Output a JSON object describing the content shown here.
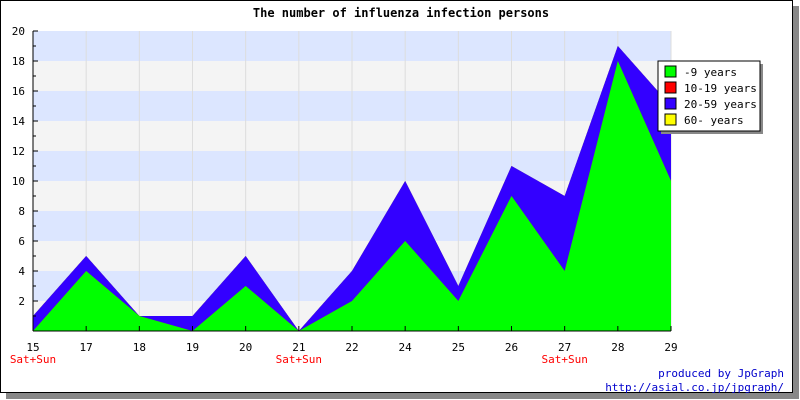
{
  "chart_data": {
    "type": "area",
    "stacked": true,
    "title": "The number of influenza infection persons",
    "categories": [
      "15",
      "17",
      "18",
      "19",
      "20",
      "21",
      "22",
      "24",
      "25",
      "26",
      "27",
      "28",
      "29"
    ],
    "weekend_label": "Sat+Sun",
    "weekend_categories": [
      "15",
      "21",
      "27"
    ],
    "ylim": [
      0,
      20
    ],
    "yticks": [
      2,
      4,
      6,
      8,
      10,
      12,
      14,
      16,
      18,
      20
    ],
    "grid": true,
    "legend_position": "right",
    "series": [
      {
        "name": "-9 years",
        "color": "#00ff00",
        "values": [
          0,
          4,
          1,
          0,
          3,
          0,
          2,
          6,
          2,
          9,
          4,
          18,
          10
        ]
      },
      {
        "name": "10-19 years",
        "color": "#ff0000",
        "values": [
          0,
          0,
          0,
          0,
          0,
          0,
          0,
          0,
          0,
          0,
          0,
          0,
          0
        ]
      },
      {
        "name": "20-59 years",
        "color": "#3300ff",
        "values": [
          1,
          1,
          0,
          1,
          2,
          0,
          2,
          4,
          1,
          2,
          5,
          1,
          5
        ]
      },
      {
        "name": "60- years",
        "color": "#ffff00",
        "values": [
          0,
          0,
          0,
          0,
          0,
          0,
          0,
          0,
          0,
          0,
          0,
          0,
          0
        ]
      }
    ]
  },
  "credits": {
    "line1": "produced by JpGraph",
    "line2": "http://asial.co.jp/jpgraph/"
  }
}
